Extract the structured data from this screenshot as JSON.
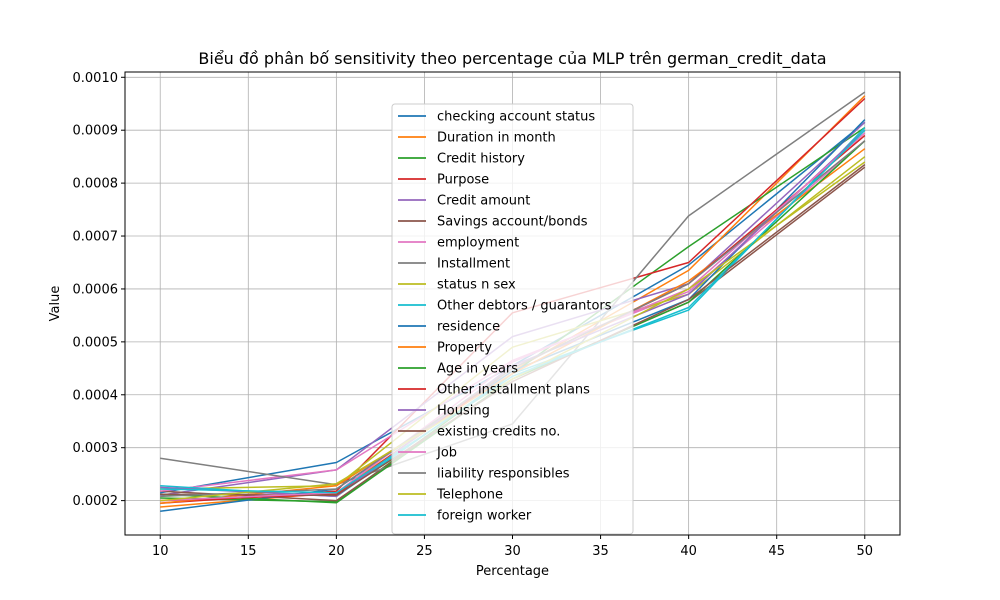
{
  "chart_data": {
    "type": "line",
    "title": "Biểu đồ phân bố sensitivity theo percentage của MLP trên german_credit_data",
    "xlabel": "Percentage",
    "ylabel": "Value",
    "x": [
      10,
      20,
      30,
      40,
      50
    ],
    "xlim": [
      8,
      52
    ],
    "ylim": [
      0.000135,
      0.00101
    ],
    "xticks": [
      "10",
      "15",
      "20",
      "25",
      "30",
      "35",
      "40",
      "45",
      "50"
    ],
    "yticks": [
      "0.0002",
      "0.0003",
      "0.0004",
      "0.0005",
      "0.0006",
      "0.0007",
      "0.0008",
      "0.0009",
      "0.0010"
    ],
    "grid": true,
    "legend_position": "center",
    "series": [
      {
        "name": "checking account status",
        "color": "#1f77b4",
        "values": [
          0.000215,
          0.000272,
          0.000455,
          0.000645,
          0.000915
        ]
      },
      {
        "name": "Duration in month",
        "color": "#ff7f0e",
        "values": [
          0.000188,
          0.000215,
          0.000445,
          0.000635,
          0.000965
        ]
      },
      {
        "name": "Credit history",
        "color": "#2ca02c",
        "values": [
          0.000205,
          0.000198,
          0.00044,
          0.00068,
          0.000905
        ]
      },
      {
        "name": "Purpose",
        "color": "#d62728",
        "values": [
          0.000195,
          0.000218,
          0.000555,
          0.00065,
          0.00096
        ]
      },
      {
        "name": "Credit amount",
        "color": "#9467bd",
        "values": [
          0.00021,
          0.000258,
          0.00051,
          0.00061,
          0.000915
        ]
      },
      {
        "name": "Savings account/bonds",
        "color": "#8c564b",
        "values": [
          0.000218,
          0.0002,
          0.00043,
          0.000575,
          0.00083
        ]
      },
      {
        "name": "employment",
        "color": "#e377c2",
        "values": [
          0.000218,
          0.000258,
          0.000465,
          0.000595,
          0.00088
        ]
      },
      {
        "name": " Installment",
        "color": "#7f7f7f",
        "values": [
          0.00028,
          0.00023,
          0.000345,
          0.000738,
          0.000972
        ]
      },
      {
        "name": "status n sex",
        "color": "#bcbd22",
        "values": [
          0.000222,
          0.000228,
          0.00049,
          0.00059,
          0.00085
        ]
      },
      {
        "name": " Other debtors / guarantors",
        "color": "#17becf",
        "values": [
          0.000228,
          0.000208,
          0.00044,
          0.00056,
          0.000905
        ]
      },
      {
        "name": "residence",
        "color": "#1f77b4",
        "values": [
          0.00018,
          0.000222,
          0.000445,
          0.00058,
          0.00092
        ]
      },
      {
        "name": "Property",
        "color": "#ff7f0e",
        "values": [
          0.000195,
          0.000228,
          0.00044,
          0.000615,
          0.000865
        ]
      },
      {
        "name": "Age in years",
        "color": "#2ca02c",
        "values": [
          0.000212,
          0.000196,
          0.00043,
          0.000575,
          0.00088
        ]
      },
      {
        "name": "Other installment plans",
        "color": "#d62728",
        "values": [
          0.0002,
          0.000212,
          0.00045,
          0.00061,
          0.00089
        ]
      },
      {
        "name": "Housing",
        "color": "#9467bd",
        "values": [
          0.000225,
          0.000208,
          0.000455,
          0.00059,
          0.0009
        ]
      },
      {
        "name": "existing credits no.",
        "color": "#8c564b",
        "values": [
          0.000212,
          0.00021,
          0.000425,
          0.00058,
          0.000835
        ]
      },
      {
        "name": "Job",
        "color": "#e377c2",
        "values": [
          0.0002,
          0.000215,
          0.000462,
          0.0006,
          0.000895
        ]
      },
      {
        "name": "liability responsibles",
        "color": "#7f7f7f",
        "values": [
          0.000208,
          0.000222,
          0.00045,
          0.00061,
          0.00088
        ]
      },
      {
        "name": "Telephone",
        "color": "#bcbd22",
        "values": [
          0.0002,
          0.000232,
          0.00043,
          0.0006,
          0.00084
        ]
      },
      {
        "name": "foreign worker",
        "color": "#17becf",
        "values": [
          0.000222,
          0.000215,
          0.000435,
          0.000565,
          0.0009
        ]
      }
    ]
  }
}
